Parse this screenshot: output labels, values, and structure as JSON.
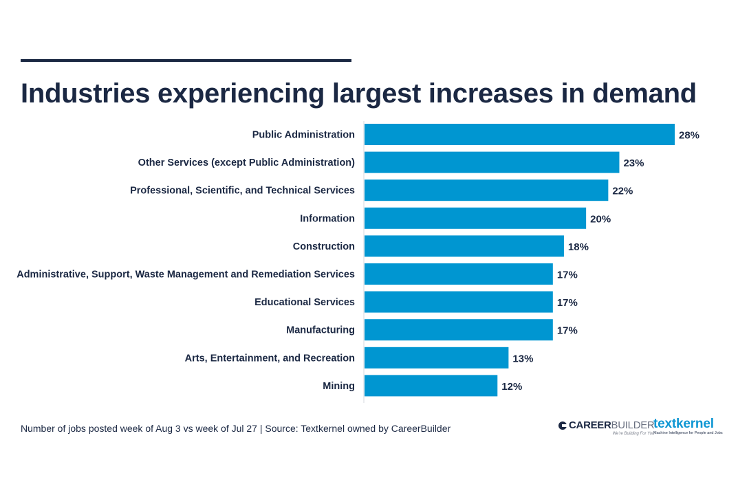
{
  "header": {
    "title": "Industries experiencing largest increases in demand"
  },
  "footer": {
    "note": "Number of jobs posted week of Aug 3 vs week of Jul 27  |  Source: Textkernel owned by CareerBuilder"
  },
  "logos": {
    "careerbuilder": {
      "bold": "CAREER",
      "light": "BUILDER",
      "tagline": "We're Building For You"
    },
    "textkernel": {
      "name": "textkernel",
      "tagline": "Machine Intelligence for People and Jobs"
    }
  },
  "colors": {
    "bar": "#0096d1",
    "text": "#1b2843",
    "axis": "#e3e6ea",
    "brand_textkernel": "#0f97d3"
  },
  "chart_data": {
    "type": "bar",
    "orientation": "horizontal",
    "title": "Industries experiencing largest increases in demand",
    "xlabel": "",
    "ylabel": "",
    "xlim": [
      0,
      28
    ],
    "grid": false,
    "legend": "none",
    "value_suffix": "%",
    "categories": [
      "Public Administration",
      "Other Services (except Public Administration)",
      "Professional, Scientific, and Technical Services",
      "Information",
      "Construction",
      "Administrative, Support, Waste Management and Remediation Services",
      "Educational Services",
      "Manufacturing",
      "Arts, Entertainment, and Recreation",
      "Mining"
    ],
    "values": [
      28,
      23,
      22,
      20,
      18,
      17,
      17,
      17,
      13,
      12
    ],
    "data_labels": [
      "28%",
      "23%",
      "22%",
      "20%",
      "18%",
      "17%",
      "17%",
      "17%",
      "13%",
      "12%"
    ]
  }
}
